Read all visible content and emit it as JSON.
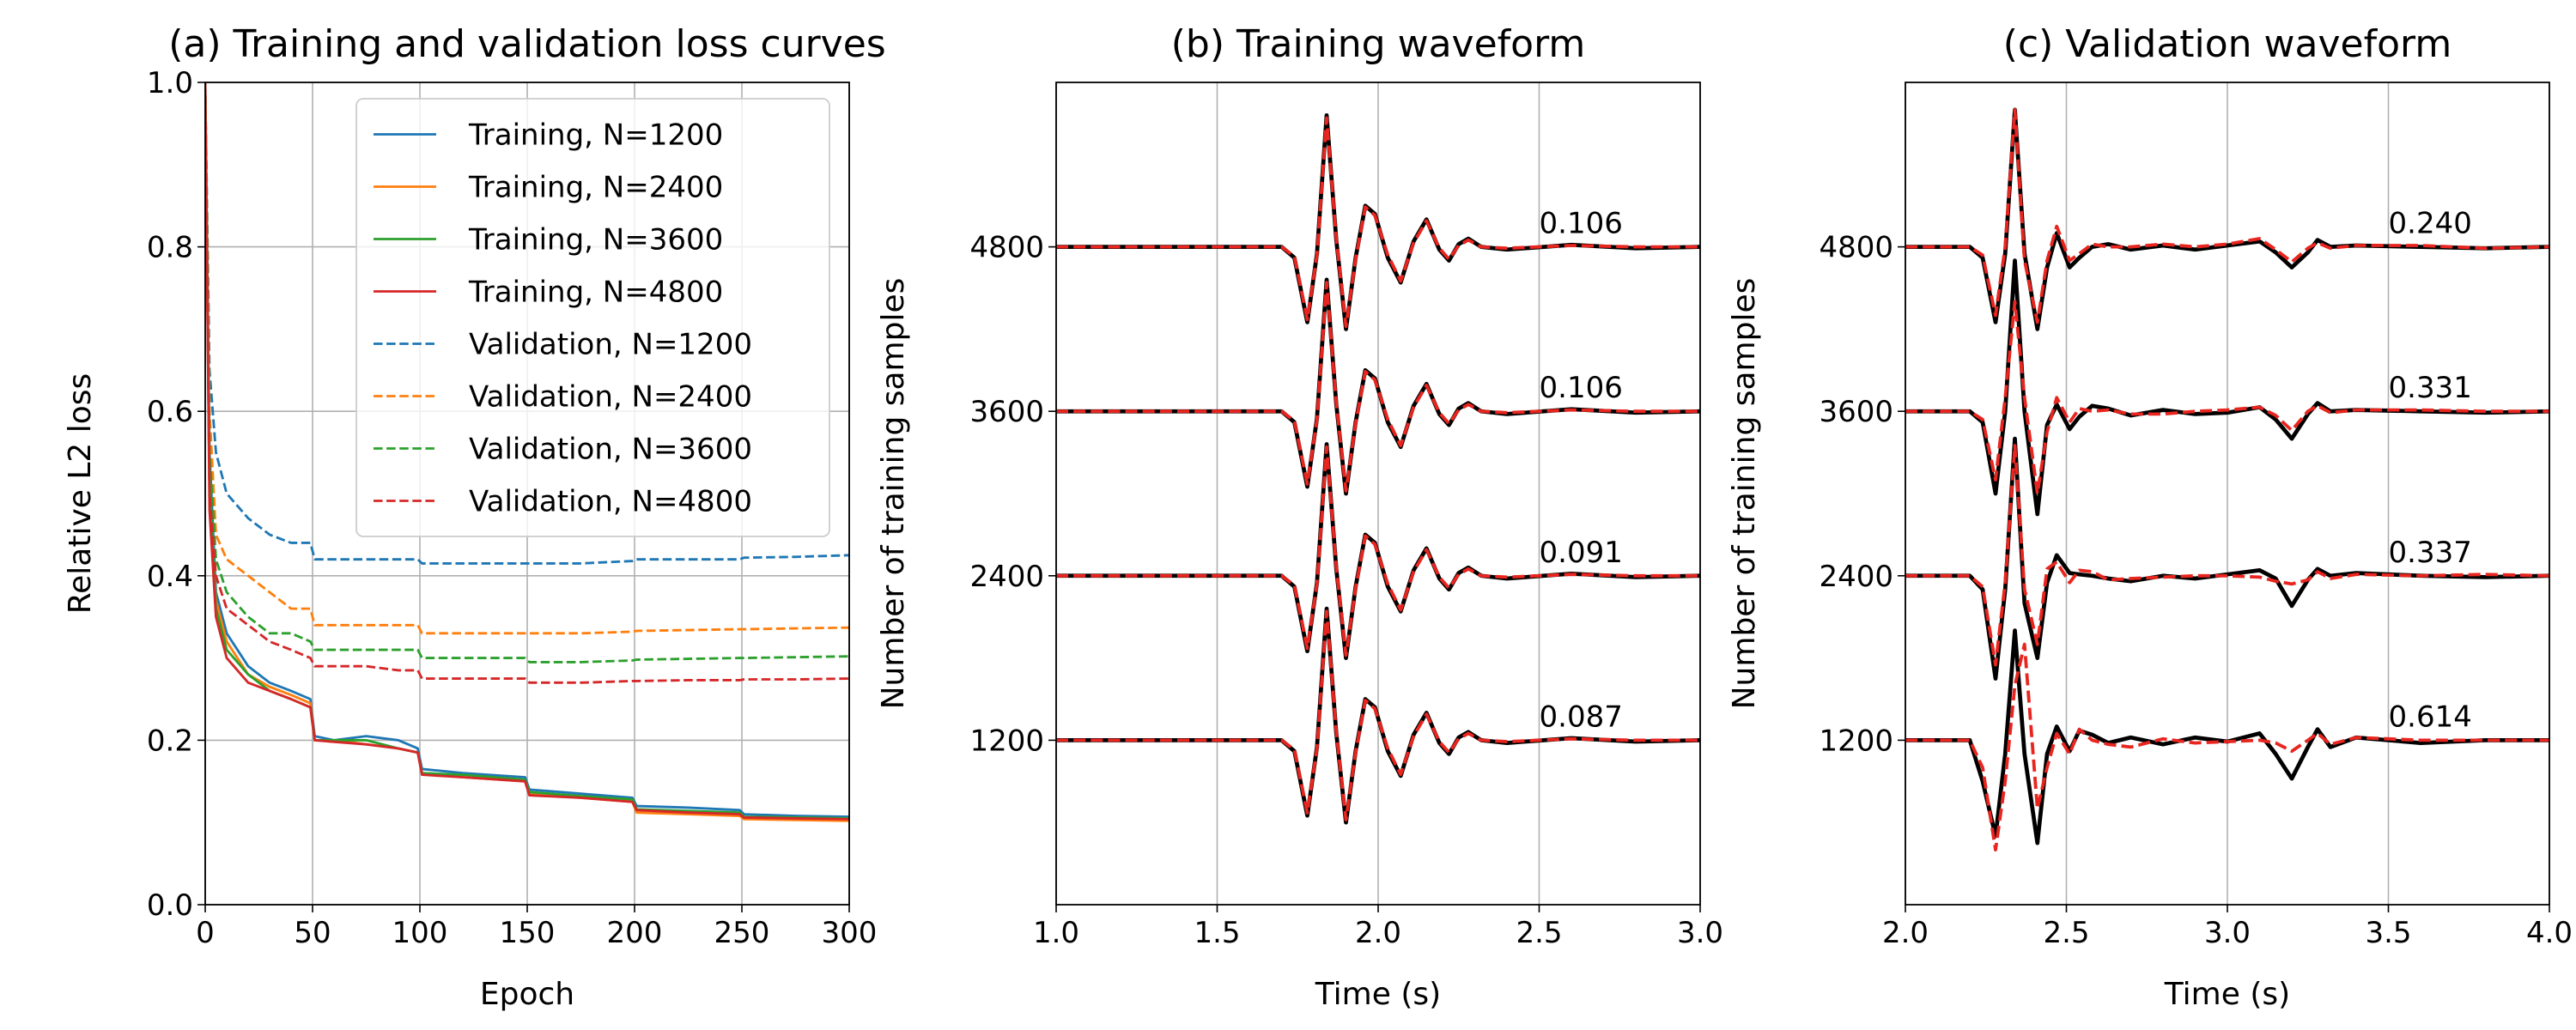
{
  "chart_data": [
    {
      "type": "line",
      "title": "(a) Training and validation loss curves",
      "xlabel": "Epoch",
      "ylabel": "Relative L2 loss",
      "x": [
        0,
        2,
        5,
        10,
        20,
        30,
        40,
        49,
        51,
        60,
        75,
        90,
        99,
        101,
        120,
        149,
        151,
        175,
        199,
        201,
        225,
        249,
        251,
        275,
        300
      ],
      "xlim": [
        0,
        300
      ],
      "ylim": [
        0,
        1
      ],
      "xticks": [
        0,
        50,
        100,
        150,
        200,
        250,
        300
      ],
      "yticks": [
        {
          "value": 0,
          "label": "0.0"
        },
        0.2,
        0.4,
        0.6,
        0.8,
        {
          "value": 1,
          "label": "1.0"
        }
      ],
      "grid": "both",
      "legend": "upper right",
      "series": [
        {
          "name": "Training, N=1200",
          "color": "#1f77b4",
          "linestyle": "solid",
          "linewidth": 1.5,
          "values": [
            1.0,
            0.55,
            0.38,
            0.33,
            0.29,
            0.27,
            0.26,
            0.25,
            0.205,
            0.2,
            0.205,
            0.2,
            0.19,
            0.165,
            0.16,
            0.155,
            0.14,
            0.135,
            0.13,
            0.12,
            0.118,
            0.115,
            0.11,
            0.108,
            0.107
          ]
        },
        {
          "name": "Training, N=2400",
          "color": "#ff7f0e",
          "linestyle": "solid",
          "linewidth": 1.5,
          "values": [
            1.0,
            0.5,
            0.37,
            0.32,
            0.28,
            0.265,
            0.255,
            0.245,
            0.2,
            0.2,
            0.195,
            0.19,
            0.185,
            0.16,
            0.155,
            0.15,
            0.135,
            0.13,
            0.125,
            0.112,
            0.11,
            0.108,
            0.104,
            0.103,
            0.102
          ]
        },
        {
          "name": "Training, N=3600",
          "color": "#2ca02c",
          "linestyle": "solid",
          "linewidth": 1.5,
          "values": [
            1.0,
            0.52,
            0.36,
            0.31,
            0.28,
            0.26,
            0.25,
            0.24,
            0.2,
            0.2,
            0.2,
            0.19,
            0.185,
            0.16,
            0.158,
            0.152,
            0.137,
            0.132,
            0.128,
            0.116,
            0.114,
            0.112,
            0.107,
            0.106,
            0.105
          ]
        },
        {
          "name": "Training, N=4800",
          "color": "#d62728",
          "linestyle": "solid",
          "linewidth": 1.5,
          "values": [
            1.0,
            0.48,
            0.35,
            0.3,
            0.27,
            0.26,
            0.25,
            0.24,
            0.2,
            0.198,
            0.195,
            0.19,
            0.185,
            0.158,
            0.155,
            0.15,
            0.133,
            0.13,
            0.125,
            0.115,
            0.112,
            0.11,
            0.106,
            0.105,
            0.104
          ]
        },
        {
          "name": "Validation, N=1200",
          "color": "#1f77b4",
          "linestyle": "dashed",
          "linewidth": 1.5,
          "values": [
            1.0,
            0.65,
            0.55,
            0.5,
            0.47,
            0.45,
            0.44,
            0.44,
            0.42,
            0.42,
            0.42,
            0.42,
            0.42,
            0.415,
            0.415,
            0.415,
            0.415,
            0.415,
            0.418,
            0.42,
            0.42,
            0.42,
            0.422,
            0.423,
            0.425
          ]
        },
        {
          "name": "Validation, N=2400",
          "color": "#ff7f0e",
          "linestyle": "dashed",
          "linewidth": 1.5,
          "values": [
            1.0,
            0.6,
            0.45,
            0.42,
            0.4,
            0.38,
            0.36,
            0.36,
            0.34,
            0.34,
            0.34,
            0.34,
            0.34,
            0.33,
            0.33,
            0.33,
            0.33,
            0.33,
            0.332,
            0.333,
            0.334,
            0.335,
            0.335,
            0.336,
            0.337
          ]
        },
        {
          "name": "Validation, N=3600",
          "color": "#2ca02c",
          "linestyle": "dashed",
          "linewidth": 1.5,
          "values": [
            1.0,
            0.55,
            0.42,
            0.38,
            0.35,
            0.33,
            0.33,
            0.32,
            0.31,
            0.31,
            0.31,
            0.31,
            0.31,
            0.3,
            0.3,
            0.3,
            0.295,
            0.295,
            0.297,
            0.298,
            0.299,
            0.3,
            0.3,
            0.301,
            0.302
          ]
        },
        {
          "name": "Validation, N=4800",
          "color": "#d62728",
          "linestyle": "dashed",
          "linewidth": 1.5,
          "values": [
            1.0,
            0.5,
            0.4,
            0.36,
            0.34,
            0.32,
            0.31,
            0.3,
            0.29,
            0.29,
            0.29,
            0.285,
            0.285,
            0.275,
            0.275,
            0.275,
            0.27,
            0.27,
            0.272,
            0.272,
            0.273,
            0.273,
            0.274,
            0.274,
            0.275
          ]
        }
      ]
    },
    {
      "type": "line",
      "title": "(b) Training waveform",
      "xlabel": "Time (s)",
      "ylabel": "Number of training samples",
      "x": [
        1.0,
        1.5,
        1.7,
        1.74,
        1.78,
        1.81,
        1.84,
        1.87,
        1.9,
        1.93,
        1.96,
        1.99,
        2.03,
        2.07,
        2.11,
        2.15,
        2.19,
        2.22,
        2.25,
        2.28,
        2.32,
        2.4,
        2.6,
        2.8,
        3.0
      ],
      "xlim": [
        1,
        3
      ],
      "ylim": [
        0,
        6000
      ],
      "xticks": [
        {
          "value": 1,
          "label": "1.0"
        },
        1.5,
        {
          "value": 2,
          "label": "2.0"
        },
        2.5,
        {
          "value": 3,
          "label": "3.0"
        }
      ],
      "yticks": [
        1200,
        2400,
        3600,
        4800
      ],
      "grid": "x",
      "trace_labels": [
        "0.087",
        "0.091",
        "0.106",
        "0.106"
      ],
      "series": [
        {
          "color": "#000000",
          "linestyle": "solid",
          "linewidth": 2.5,
          "values": [
            1200,
            1200,
            1200,
            1120,
            650,
            1150,
            2160,
            1250,
            600,
            1120,
            1500,
            1440,
            1120,
            940,
            1240,
            1400,
            1180,
            1100,
            1220,
            1260,
            1200,
            1180,
            1215,
            1190,
            1200
          ]
        },
        {
          "color": "#e8251f",
          "linestyle": "dashed",
          "linewidth": 2,
          "values": [
            1200,
            1200,
            1200,
            1130,
            670,
            1140,
            2140,
            1260,
            620,
            1110,
            1490,
            1430,
            1140,
            950,
            1230,
            1390,
            1190,
            1110,
            1210,
            1250,
            1200,
            1190,
            1210,
            1200,
            1200
          ]
        },
        {
          "color": "#000000",
          "linestyle": "solid",
          "linewidth": 2.5,
          "values": [
            2400,
            2400,
            2400,
            2320,
            1850,
            2350,
            3360,
            2450,
            1800,
            2320,
            2700,
            2640,
            2320,
            2140,
            2440,
            2600,
            2380,
            2300,
            2420,
            2460,
            2400,
            2380,
            2415,
            2390,
            2400
          ]
        },
        {
          "color": "#e8251f",
          "linestyle": "dashed",
          "linewidth": 2,
          "values": [
            2400,
            2400,
            2400,
            2330,
            1870,
            2340,
            3340,
            2460,
            1820,
            2310,
            2690,
            2630,
            2340,
            2150,
            2430,
            2590,
            2390,
            2310,
            2410,
            2450,
            2400,
            2390,
            2410,
            2400,
            2400
          ]
        },
        {
          "color": "#000000",
          "linestyle": "solid",
          "linewidth": 2.5,
          "values": [
            3600,
            3600,
            3600,
            3520,
            3050,
            3550,
            4560,
            3650,
            3000,
            3520,
            3900,
            3840,
            3520,
            3340,
            3640,
            3800,
            3580,
            3500,
            3620,
            3660,
            3600,
            3580,
            3615,
            3590,
            3600
          ]
        },
        {
          "color": "#e8251f",
          "linestyle": "dashed",
          "linewidth": 2,
          "values": [
            3600,
            3600,
            3600,
            3530,
            3070,
            3540,
            4540,
            3660,
            3020,
            3510,
            3890,
            3830,
            3540,
            3350,
            3630,
            3790,
            3590,
            3510,
            3610,
            3650,
            3600,
            3590,
            3610,
            3600,
            3600
          ]
        },
        {
          "color": "#000000",
          "linestyle": "solid",
          "linewidth": 2.5,
          "values": [
            4800,
            4800,
            4800,
            4720,
            4250,
            4750,
            5760,
            4850,
            4200,
            4720,
            5100,
            5040,
            4720,
            4540,
            4840,
            5000,
            4780,
            4700,
            4820,
            4860,
            4800,
            4780,
            4815,
            4790,
            4800
          ]
        },
        {
          "color": "#e8251f",
          "linestyle": "dashed",
          "linewidth": 2,
          "values": [
            4800,
            4800,
            4800,
            4730,
            4270,
            4740,
            5740,
            4860,
            4220,
            4710,
            5090,
            5030,
            4740,
            4550,
            4830,
            4990,
            4790,
            4710,
            4810,
            4850,
            4800,
            4790,
            4810,
            4800,
            4800
          ]
        }
      ]
    },
    {
      "type": "line",
      "title": "(c) Validation waveform",
      "xlabel": "Time (s)",
      "ylabel": "Number of training samples",
      "x": [
        2.0,
        2.2,
        2.24,
        2.28,
        2.31,
        2.34,
        2.37,
        2.41,
        2.44,
        2.47,
        2.51,
        2.54,
        2.58,
        2.63,
        2.7,
        2.8,
        2.9,
        3.0,
        3.1,
        3.15,
        3.2,
        3.25,
        3.28,
        3.32,
        3.4,
        3.6,
        3.8,
        4.0
      ],
      "xlim": [
        2,
        4
      ],
      "ylim": [
        0,
        6000
      ],
      "xticks": [
        {
          "value": 2,
          "label": "2.0"
        },
        2.5,
        {
          "value": 3,
          "label": "3.0"
        },
        3.5,
        {
          "value": 4,
          "label": "4.0"
        }
      ],
      "yticks": [
        1200,
        2400,
        3600,
        4800
      ],
      "grid": "x",
      "trace_labels": [
        "0.614",
        "0.337",
        "0.331",
        "0.240"
      ],
      "series": [
        {
          "color": "#000000",
          "linestyle": "solid",
          "linewidth": 2.5,
          "values": [
            1200,
            1200,
            900,
            500,
            1100,
            2000,
            1100,
            450,
            1100,
            1300,
            1120,
            1270,
            1240,
            1180,
            1220,
            1170,
            1220,
            1190,
            1250,
            1100,
            920,
            1150,
            1280,
            1150,
            1220,
            1180,
            1200,
            1200
          ]
        },
        {
          "color": "#e8251f",
          "linestyle": "dashed",
          "linewidth": 2,
          "values": [
            1200,
            1200,
            1000,
            400,
            900,
            1600,
            1900,
            700,
            1000,
            1250,
            1100,
            1280,
            1200,
            1170,
            1150,
            1210,
            1180,
            1190,
            1200,
            1180,
            1120,
            1200,
            1250,
            1170,
            1220,
            1200,
            1200,
            1200
          ]
        },
        {
          "color": "#000000",
          "linestyle": "solid",
          "linewidth": 2.5,
          "values": [
            2400,
            2400,
            2300,
            1650,
            2300,
            3400,
            2200,
            1800,
            2350,
            2550,
            2420,
            2410,
            2400,
            2380,
            2360,
            2400,
            2380,
            2410,
            2440,
            2380,
            2180,
            2370,
            2450,
            2400,
            2420,
            2400,
            2390,
            2400
          ]
        },
        {
          "color": "#e8251f",
          "linestyle": "dashed",
          "linewidth": 2,
          "values": [
            2400,
            2400,
            2320,
            1750,
            2350,
            3350,
            2300,
            1900,
            2450,
            2500,
            2350,
            2440,
            2430,
            2370,
            2380,
            2390,
            2400,
            2400,
            2390,
            2360,
            2340,
            2370,
            2430,
            2380,
            2410,
            2400,
            2410,
            2400
          ]
        },
        {
          "color": "#000000",
          "linestyle": "solid",
          "linewidth": 2.5,
          "values": [
            3600,
            3600,
            3520,
            3000,
            3600,
            4700,
            3600,
            2850,
            3500,
            3650,
            3470,
            3560,
            3640,
            3620,
            3570,
            3610,
            3580,
            3590,
            3630,
            3540,
            3400,
            3580,
            3660,
            3600,
            3610,
            3600,
            3590,
            3600
          ]
        },
        {
          "color": "#e8251f",
          "linestyle": "dashed",
          "linewidth": 2,
          "values": [
            3600,
            3600,
            3540,
            3100,
            3700,
            4400,
            3700,
            3000,
            3450,
            3700,
            3520,
            3620,
            3600,
            3610,
            3580,
            3580,
            3600,
            3610,
            3630,
            3570,
            3460,
            3600,
            3640,
            3590,
            3610,
            3610,
            3600,
            3600
          ]
        },
        {
          "color": "#000000",
          "linestyle": "solid",
          "linewidth": 2.5,
          "values": [
            4800,
            4800,
            4720,
            4250,
            4750,
            5800,
            4750,
            4200,
            4650,
            4900,
            4650,
            4720,
            4800,
            4820,
            4780,
            4810,
            4780,
            4810,
            4840,
            4760,
            4650,
            4760,
            4850,
            4800,
            4810,
            4800,
            4790,
            4800
          ]
        },
        {
          "color": "#e8251f",
          "linestyle": "dashed",
          "linewidth": 2,
          "values": [
            4800,
            4800,
            4740,
            4300,
            4800,
            5800,
            4700,
            4250,
            4700,
            4950,
            4700,
            4750,
            4820,
            4800,
            4800,
            4820,
            4800,
            4820,
            4860,
            4780,
            4690,
            4790,
            4830,
            4790,
            4810,
            4810,
            4790,
            4800
          ]
        }
      ]
    }
  ]
}
